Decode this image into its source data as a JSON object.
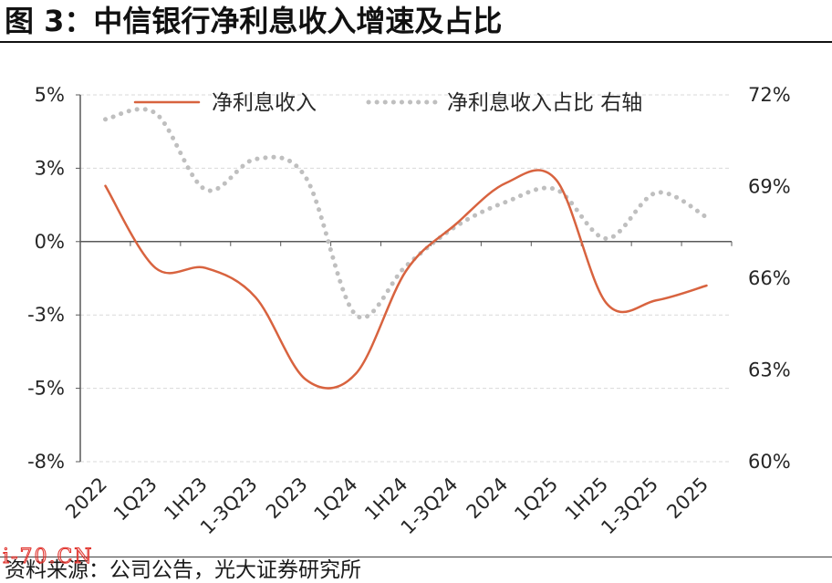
{
  "colors": {
    "growth_line": "#D8633F",
    "share_dots": "#BFBFBF",
    "axis": "#595959",
    "grid": "#D9D9D9",
    "watermark": "#E0302A"
  },
  "watermark": "i-70.CN",
  "source": "资料来源：公司公告，光大证券研究所",
  "chart_data": {
    "type": "line",
    "title": "图 3：中信银行净利息收入增速及占比",
    "categories": [
      "2022",
      "1Q23",
      "1H23",
      "1-3Q23",
      "2023",
      "1Q24",
      "1H24",
      "1-3Q24",
      "2024",
      "1Q25",
      "1H25",
      "1-3Q25",
      "2025"
    ],
    "series": [
      {
        "name": "净利息收入",
        "axis": "left",
        "line_style": "solid",
        "smooth": true,
        "values": [
          1.9,
          -0.9,
          -0.9,
          -1.9,
          -4.7,
          -4.5,
          -1.0,
          0.6,
          2.0,
          2.1,
          -2.1,
          -2.0,
          -1.5
        ]
      },
      {
        "name": "净利息收入占比 右轴",
        "axis": "right",
        "line_style": "dotted",
        "smooth": true,
        "values": [
          71.2,
          71.4,
          68.9,
          69.9,
          69.3,
          64.8,
          66.4,
          67.7,
          68.5,
          68.9,
          67.3,
          68.8,
          68.0
        ]
      }
    ],
    "y_left": {
      "lim": [
        -7.5,
        5
      ],
      "tick_labels": [
        "5%",
        "3%",
        "0%",
        "-3%",
        "-5%",
        "-8%"
      ]
    },
    "y_right": {
      "lim": [
        60,
        72
      ],
      "tick_labels": [
        "72%",
        "69%",
        "66%",
        "63%",
        "60%"
      ]
    },
    "grid": true,
    "legend": "top"
  }
}
